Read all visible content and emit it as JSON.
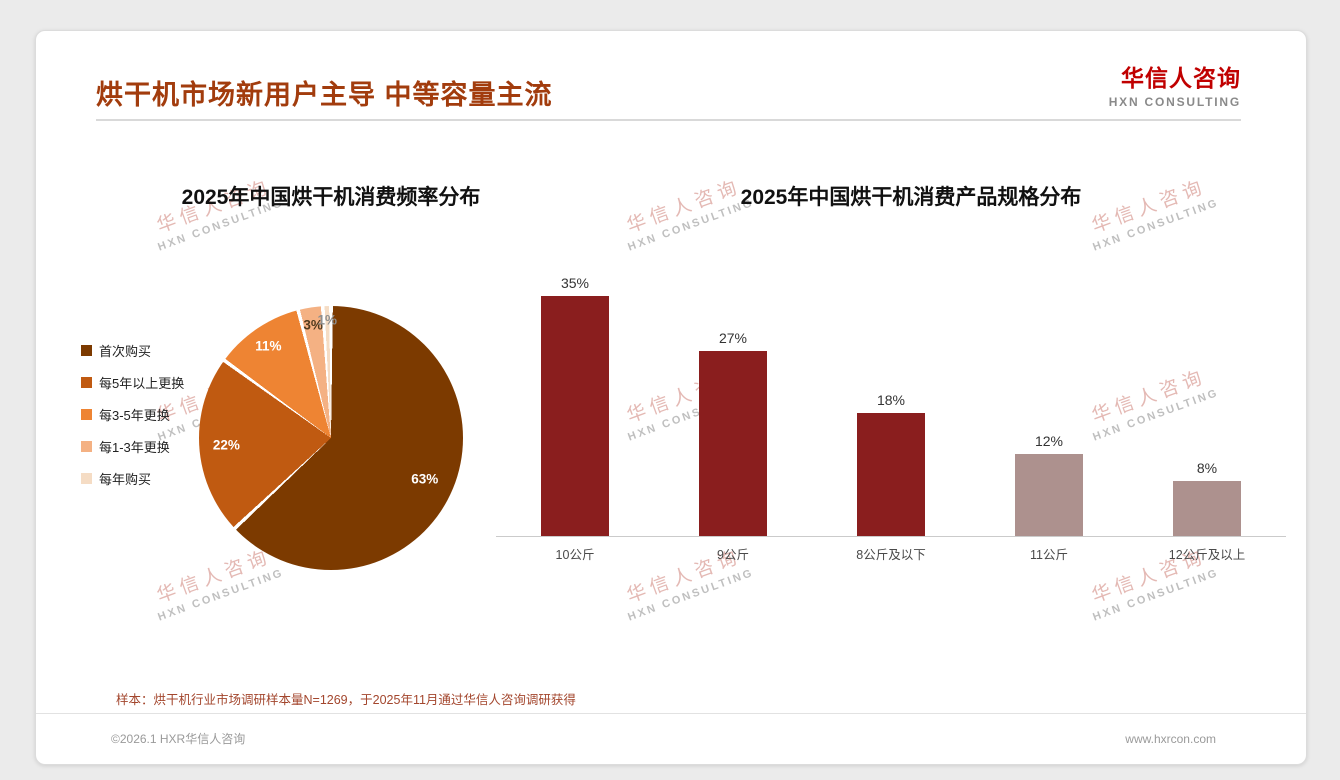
{
  "slide": {
    "title": "烘干机市场新用户主导 中等容量主流",
    "logo": {
      "cn": "华信人咨询",
      "en": "HXN CONSULTING"
    },
    "note": "样本：烘干机行业市场调研样本量N=1269，于2025年11月通过华信人咨询调研获得",
    "footer_left": "©2026.1 HXR华信人咨询",
    "footer_right": "www.hxrcon.com",
    "watermark": {
      "cn": "华信人咨询",
      "en": "HXN CONSULTING"
    },
    "colors": {
      "title_accent": "#A23C0D",
      "logo_red": "#C00000"
    }
  },
  "chart_data": [
    {
      "type": "pie",
      "title": "2025年中国烘干机消费频率分布",
      "labels": [
        "首次购买",
        "每5年以上更换",
        "每3-5年更换",
        "每1-3年更换",
        "每年购买"
      ],
      "values": [
        63,
        22,
        11,
        3,
        1
      ],
      "value_labels": [
        "63%",
        "22%",
        "11%",
        "3%",
        "1%"
      ],
      "colors": [
        "#7C3A00",
        "#C05A11",
        "#EE8433",
        "#F4B183",
        "#F5DCC4"
      ],
      "legend_position": "left"
    },
    {
      "type": "bar",
      "title": "2025年中国烘干机消费产品规格分布",
      "categories": [
        "10公斤",
        "9公斤",
        "8公斤及以下",
        "11公斤",
        "12公斤及以上"
      ],
      "values": [
        35,
        27,
        18,
        12,
        8
      ],
      "value_labels": [
        "35%",
        "27%",
        "18%",
        "12%",
        "8%"
      ],
      "bar_colors": [
        "#8A1E1E",
        "#8A1E1E",
        "#8A1E1E",
        "#AD918E",
        "#AD918E"
      ],
      "ylim": [
        0,
        40
      ],
      "grid": false
    }
  ]
}
